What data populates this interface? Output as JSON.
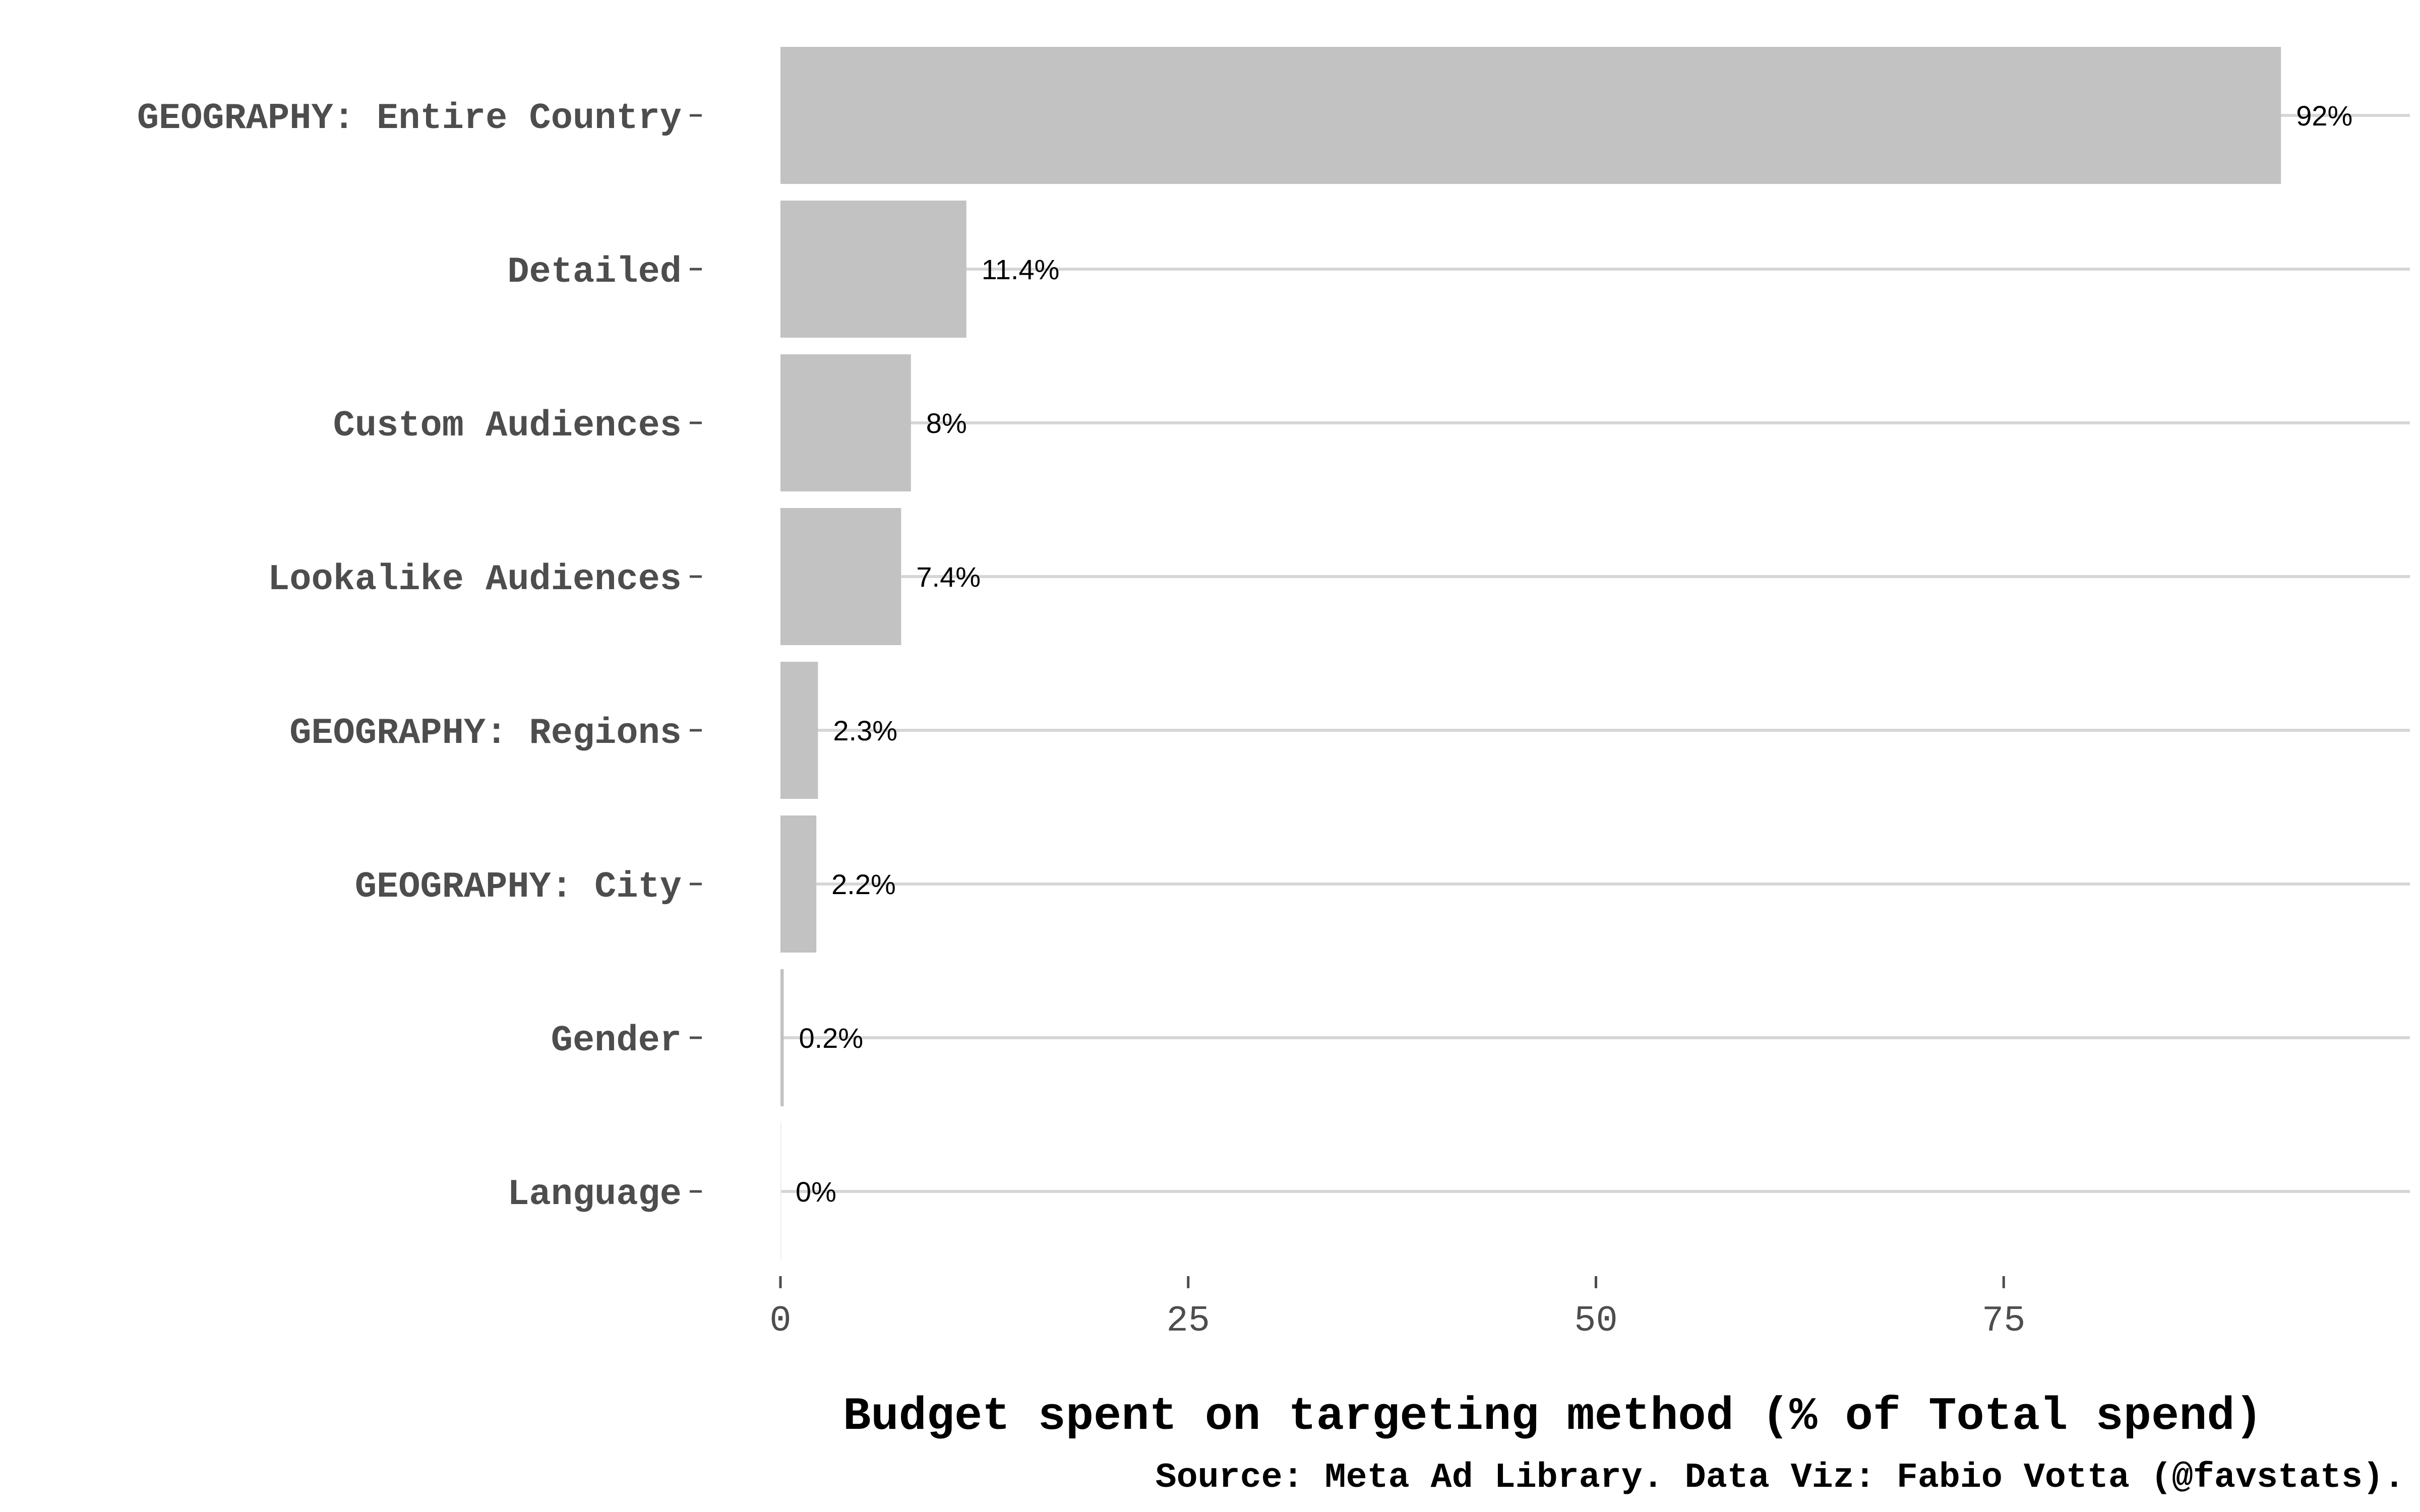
{
  "chart_data": {
    "type": "bar",
    "orientation": "horizontal",
    "categories": [
      "GEOGRAPHY: Entire Country",
      "Detailed",
      "Custom Audiences",
      "Lookalike Audiences",
      "GEOGRAPHY: Regions",
      "GEOGRAPHY: City",
      "Gender",
      "Language"
    ],
    "values": [
      92,
      11.4,
      8,
      7.4,
      2.3,
      2.2,
      0.2,
      0
    ],
    "value_labels": [
      "92%",
      "11.4%",
      "8%",
      "7.4%",
      "2.3%",
      "2.2%",
      "0.2%",
      "0%"
    ],
    "xlabel": "Budget spent on targeting method (% of Total spend)",
    "ylabel": "",
    "xlim": [
      0,
      100
    ],
    "xticks": [
      0,
      25,
      50,
      75
    ],
    "xtick_labels": [
      "0",
      "25",
      "50",
      "75"
    ],
    "caption": "Source: Meta Ad Library. Data Viz: Fabio Votta (@favstats).",
    "bar_color": "#c2c2c2",
    "grid": "major horizontal gridlines",
    "legend": "none"
  }
}
